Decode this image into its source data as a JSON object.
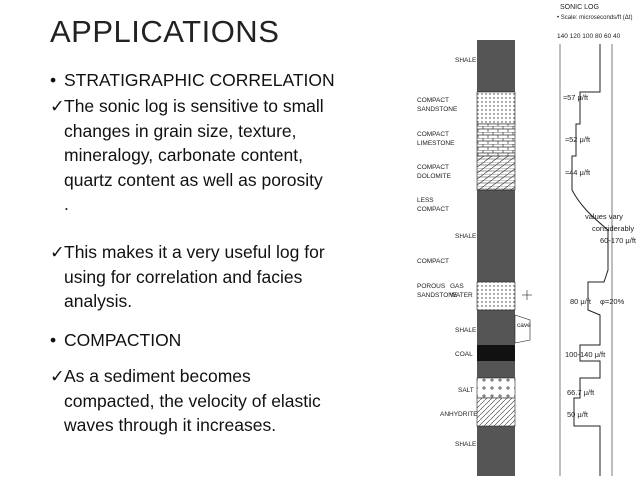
{
  "title": "APPLICATIONS",
  "items": [
    {
      "marker": "•",
      "lines": [
        "STRATIGRAPHIC CORRELATION"
      ]
    },
    {
      "marker": "✓",
      "lines": [
        "The sonic log is sensitive to small",
        "changes in grain size, texture,",
        "mineralogy, carbonate content,",
        "quartz content as well as porosity",
        "."
      ]
    },
    {
      "marker": "✓",
      "lines": [
        "This makes it a very useful log for",
        "using for correlation and facies",
        "analysis."
      ]
    },
    {
      "marker": "•",
      "lines": [
        "COMPACTION"
      ]
    },
    {
      "marker": "✓",
      "lines": [
        "As a sediment becomes",
        "compacted, the velocity of elastic",
        "waves through it increases."
      ]
    }
  ],
  "figure": {
    "header": "SONIC LOG",
    "scale_note": "• Scale: microseconds/ft (Δt)",
    "scale_ticks": "140 120 100  80  60  40",
    "lithology": [
      [
        "SHALE"
      ],
      [
        "COMPACT",
        "SANDSTONE"
      ],
      [
        "COMPACT",
        "LIMESTONE"
      ],
      [
        "COMPACT",
        "DOLOMITE"
      ],
      [
        "LESS",
        "COMPACT"
      ],
      [
        "SHALE"
      ],
      [
        "COMPACT"
      ],
      [
        "POROUS",
        "SANDSTONE"
      ],
      [
        "GAS",
        "WATER"
      ],
      [
        "SHALE"
      ],
      [
        "COAL"
      ],
      [
        "SALT"
      ],
      [
        "ANHYDRITE"
      ],
      [
        "SHALE"
      ]
    ],
    "cave": "cave",
    "log_notes": [
      "≈57 μ/ft",
      "≈52 μ/ft",
      "≈44 μ/ft",
      "values vary",
      "considerably",
      "60-170 μ/ft",
      "80 μ/ft",
      "φ=20%",
      "100-140 μ/ft",
      "66.7 μ/ft",
      "50 μ/ft"
    ]
  }
}
